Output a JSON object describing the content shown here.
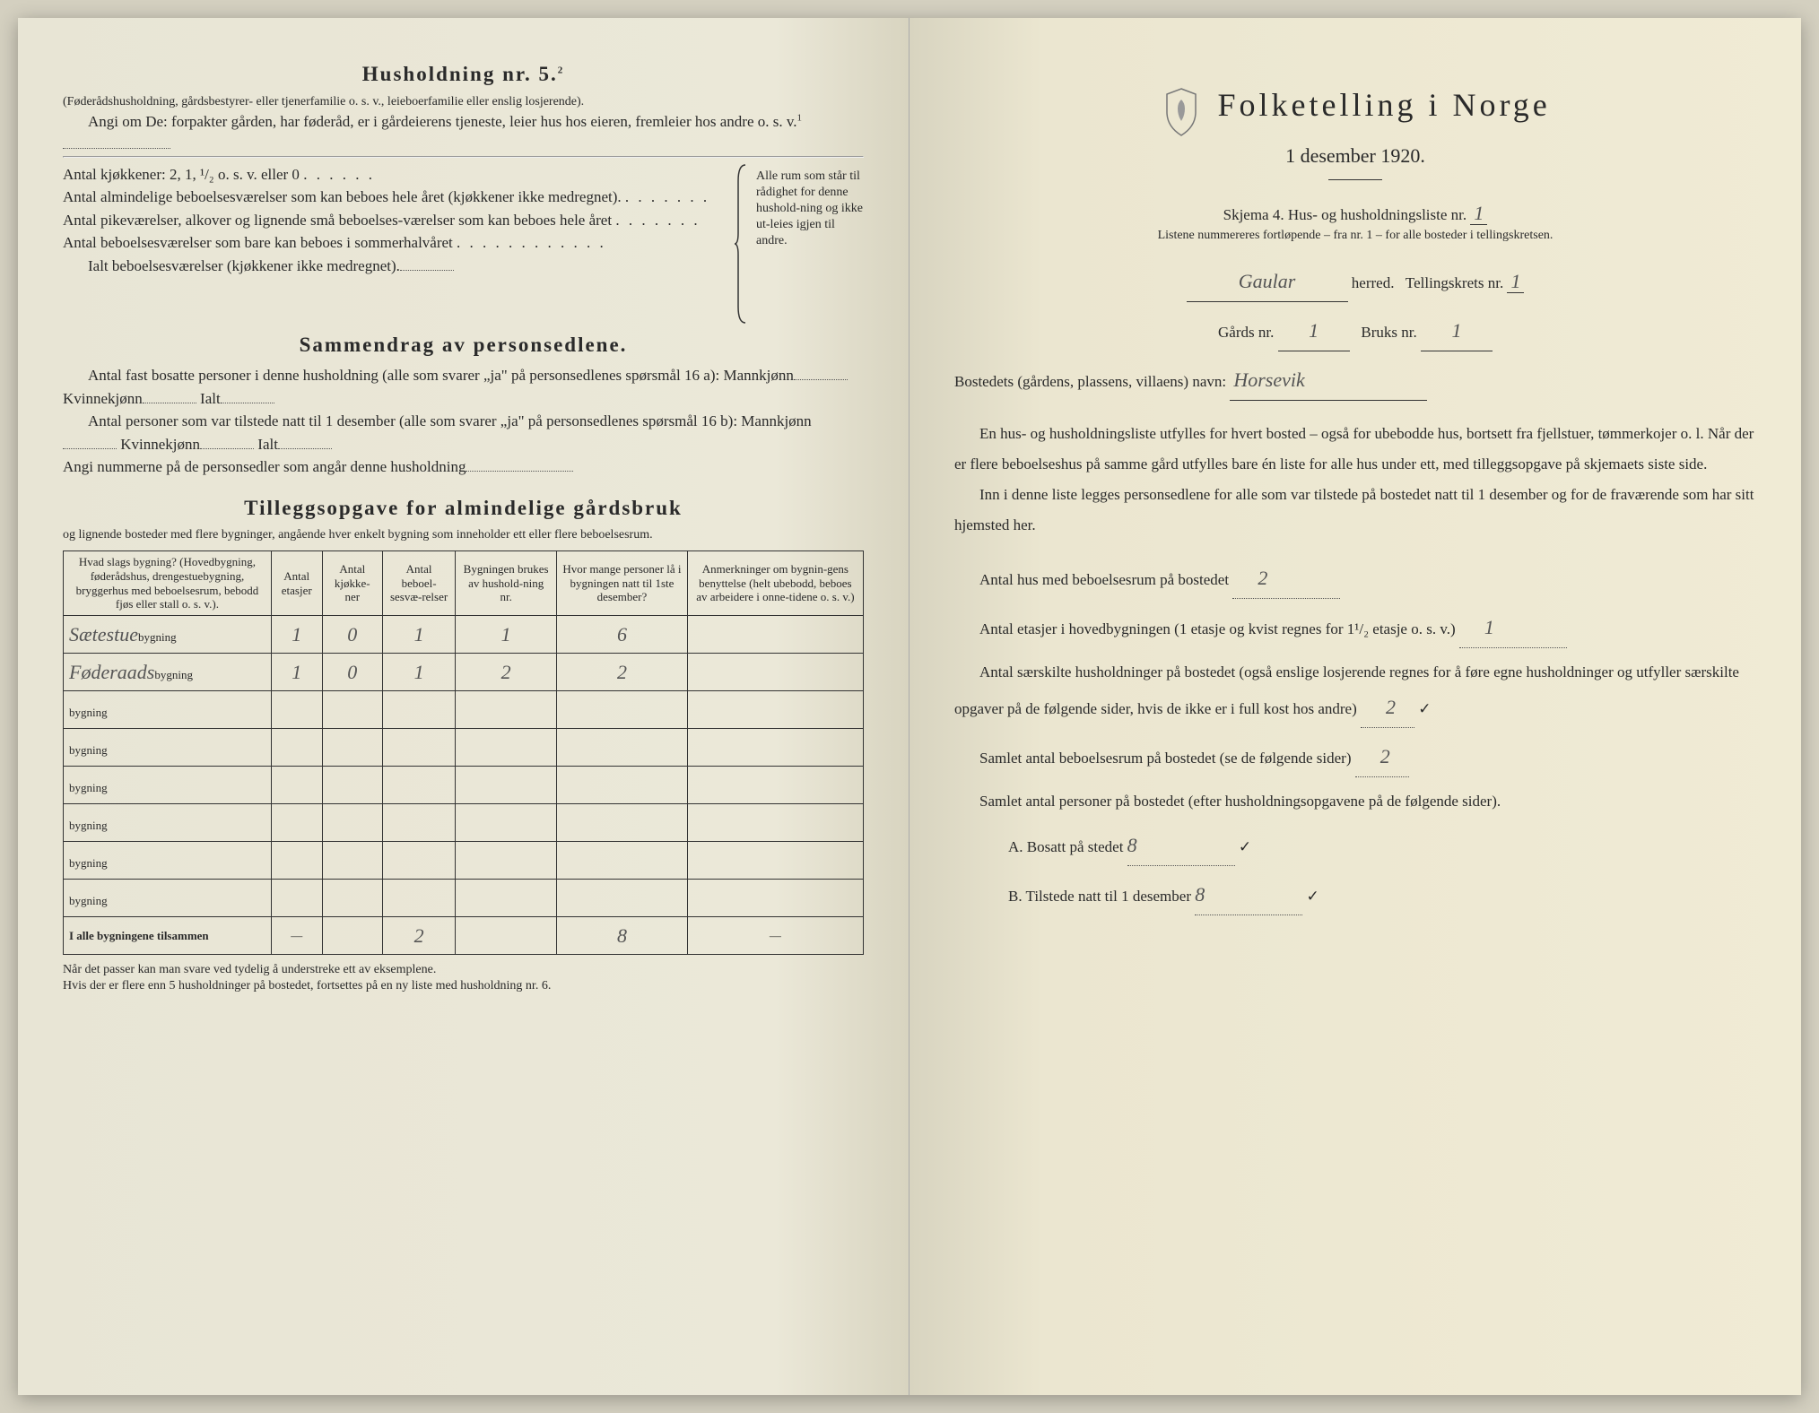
{
  "left": {
    "heading5": "Husholdning nr. 5.",
    "heading5_sup": "2",
    "par1": "(Føderådshusholdning, gårdsbestyrer- eller tjenerfamilie o. s. v., leieboerfamilie eller enslig losjerende).",
    "par2_a": "Angi om De:",
    "par2_b": "forpakter gården, har føderåd, er i gårdeierens tjeneste, leier hus hos eieren, fremleier hos andre o. s. v.",
    "par2_sup": "1",
    "kjokkener_label": "Antal kjøkkener: 2, 1, ¹/₂ o. s. v. eller 0",
    "rooms_a": "Antal almindelige beboelsesværelser som kan beboes hele året (kjøkkener ikke medregnet).",
    "rooms_b": "Antal pikeværelser, alkover og lignende små beboelses-værelser som kan beboes hele året",
    "rooms_c": "Antal beboelsesværelser som bare kan beboes i sommerhalvåret",
    "rooms_total": "Ialt beboelsesværelser  (kjøkkener ikke medregnet).",
    "brace_text": "Alle rum som står til rådighet for denne hushold-ning og ikke ut-leies igjen til andre.",
    "heading_summary": "Sammendrag av personsedlene.",
    "sum_p1": "Antal fast bosatte personer i denne husholdning (alle som svarer „ja\" på personsedlenes spørsmål 16 a): Mannkjønn",
    "sum_kv": "Kvinnekjønn",
    "sum_ialt": "Ialt",
    "sum_p2": "Antal personer som var tilstede natt til 1 desember (alle som svarer „ja\" på personsedlenes spørsmål 16 b): Mannkjønn",
    "sum_p3": "Angi nummerne på de personsedler som angår denne husholdning",
    "heading_tillegg": "Tilleggsopgave for almindelige gårdsbruk",
    "tillegg_sub": "og lignende bosteder med flere bygninger, angående hver enkelt bygning som inneholder ett eller flere beboelsesrum.",
    "table": {
      "headers": [
        "Hvad slags bygning?\n(Hovedbygning, føderådshus, drengestuebygning, bryggerhus med beboelsesrum, bebodd fjøs eller stall o. s. v.).",
        "Antal etasjer",
        "Antal kjøkke-ner",
        "Antal beboel-sesvæ-relser",
        "Bygningen brukes av hushold-ning nr.",
        "Hvor mange personer lå i bygningen natt til 1ste desember?",
        "Anmerkninger om bygnin-gens benyttelse (helt ubebodd, beboes av arbeidere i onne-tidene o. s. v.)"
      ],
      "row_suffix": "bygning",
      "rows": [
        {
          "prefix": "Sætestue",
          "vals": [
            "1",
            "0",
            "1",
            "1",
            "6",
            ""
          ]
        },
        {
          "prefix": "Føderaads",
          "vals": [
            "1",
            "0",
            "1",
            "2",
            "2",
            ""
          ]
        },
        {
          "prefix": "",
          "vals": [
            "",
            "",
            "",
            "",
            "",
            ""
          ]
        },
        {
          "prefix": "",
          "vals": [
            "",
            "",
            "",
            "",
            "",
            ""
          ]
        },
        {
          "prefix": "",
          "vals": [
            "",
            "",
            "",
            "",
            "",
            ""
          ]
        },
        {
          "prefix": "",
          "vals": [
            "",
            "",
            "",
            "",
            "",
            ""
          ]
        },
        {
          "prefix": "",
          "vals": [
            "",
            "",
            "",
            "",
            "",
            ""
          ]
        },
        {
          "prefix": "",
          "vals": [
            "",
            "",
            "",
            "",
            "",
            ""
          ]
        }
      ],
      "total_label": "I alle bygningene tilsammen",
      "totals": [
        "—",
        "",
        "2",
        "",
        "8",
        "—"
      ]
    },
    "footnote": "Når det passer kan man svare ved tydelig å understreke ett av eksemplene.\nHvis der er flere enn 5 husholdninger på bostedet, fortsettes på en ny liste med husholdning nr. 6."
  },
  "right": {
    "main_title": "Folketelling i Norge",
    "subtitle": "1 desember 1920.",
    "skjema_line": "Skjema 4.   Hus- og husholdningsliste nr.",
    "skjema_val": "1",
    "list_note": "Listene nummereres fortløpende – fra nr. 1 – for alle bosteder i tellingskretsen.",
    "herred_val": "Gaular",
    "herred_lbl": "herred.",
    "tkrets_lbl": "Tellingskrets nr.",
    "tkrets_val": "1",
    "gards_lbl": "Gårds nr.",
    "gards_val": "1",
    "bruks_lbl": "Bruks nr.",
    "bruks_val": "1",
    "bosted_lbl": "Bostedets (gårdens, plassens, villaens) navn:",
    "bosted_val": "Horsevik",
    "para1": "En hus- og husholdningsliste utfylles for hvert bosted – også for ubebodde hus, bortsett fra fjellstuer, tømmerkojer o. l.  Når der er flere beboelseshus på samme gård utfylles bare én liste for alle hus under ett, med tilleggsopgave på skjemaets siste side.",
    "para2": "Inn i denne liste legges personsedlene for alle som var tilstede på bostedet natt til 1 desember og for de fraværende som har sitt hjemsted her.",
    "q1_lbl": "Antal hus med beboelsesrum på bostedet",
    "q1_val": "2",
    "q2_lbl_a": "Antal etasjer i hovedbygningen (1 etasje og kvist regnes for 1¹/₂ etasje o. s. v.)",
    "q2_val": "1",
    "q3_lbl": "Antal særskilte husholdninger på bostedet (også enslige losjerende regnes for å føre egne husholdninger og utfyller særskilte opgaver på de følgende sider, hvis de ikke er i full kost hos andre)",
    "q3_val": "2",
    "q4_lbl": "Samlet antal beboelsesrum på bostedet (se de følgende sider)",
    "q4_val": "2",
    "q5_lbl": "Samlet antal personer på bostedet (efter husholdningsopgavene på de følgende sider).",
    "qA_lbl": "A.  Bosatt på stedet",
    "qA_val": "8",
    "qB_lbl": "B.  Tilstede natt til 1 desember",
    "qB_val": "8"
  }
}
